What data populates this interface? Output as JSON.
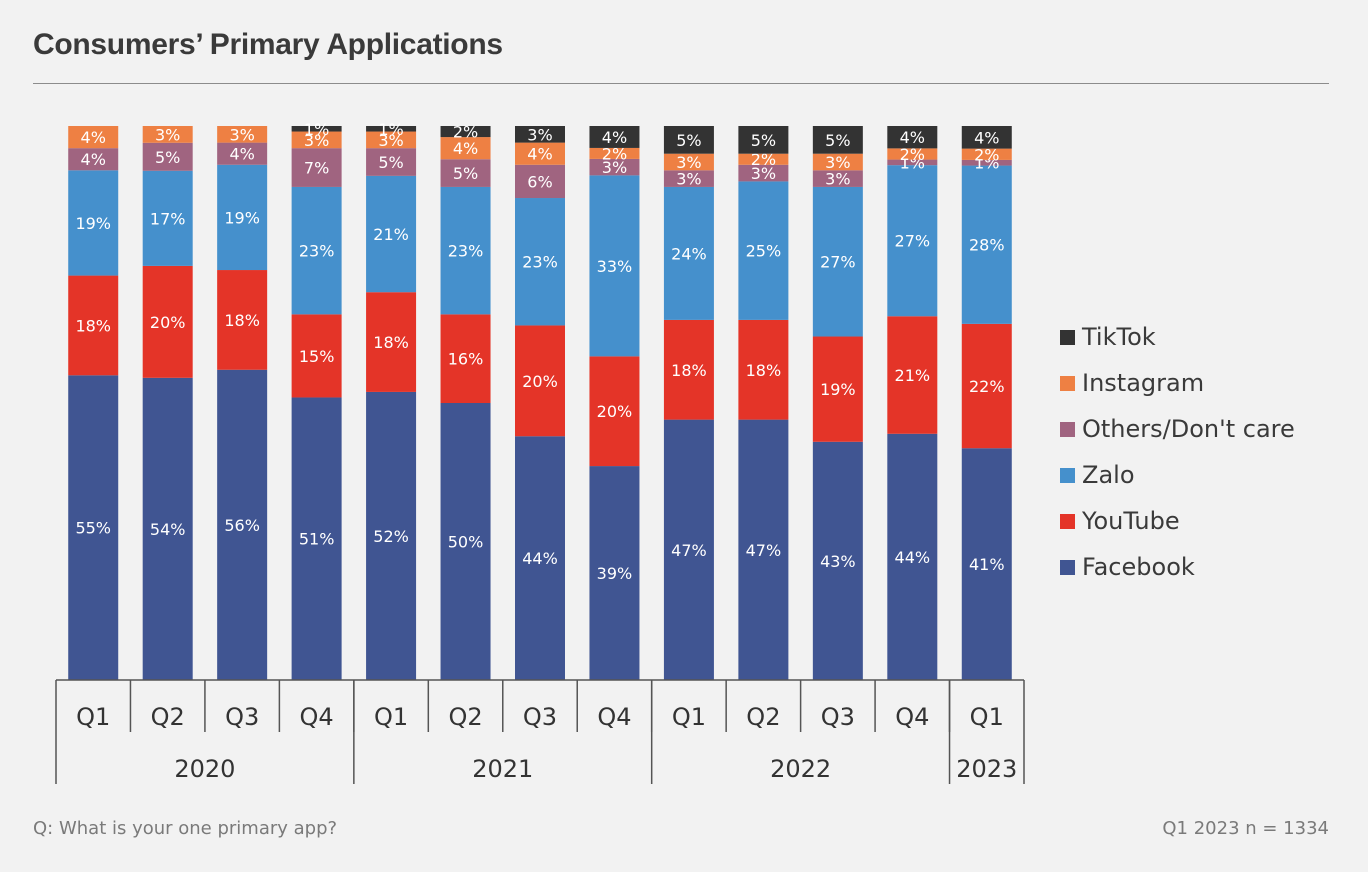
{
  "header": {
    "title": "Consumers’ Primary Applications"
  },
  "footer": {
    "question": "Q: What is your one primary app?",
    "sample": "Q1 2023 n = 1334"
  },
  "colors": {
    "Facebook": "#405592",
    "YouTube": "#e43428",
    "Zalo": "#4590cc",
    "Others/Don't care": "#a06480",
    "Instagram": "#ee8043",
    "TikTok": "#333333"
  },
  "legend": [
    "TikTok",
    "Instagram",
    "Others/Don't care",
    "Zalo",
    "YouTube",
    "Facebook"
  ],
  "chart_data": {
    "type": "bar",
    "stacked": true,
    "title": "Consumers’ Primary Applications",
    "categories": [
      "Q1",
      "Q2",
      "Q3",
      "Q4",
      "Q1",
      "Q2",
      "Q3",
      "Q4",
      "Q1",
      "Q2",
      "Q3",
      "Q4",
      "Q1"
    ],
    "groups": [
      {
        "label": "2020",
        "count": 4
      },
      {
        "label": "2021",
        "count": 4
      },
      {
        "label": "2022",
        "count": 4
      },
      {
        "label": "2023",
        "count": 1
      }
    ],
    "series": [
      {
        "name": "Facebook",
        "values": [
          55,
          54,
          56,
          51,
          52,
          50,
          44,
          39,
          47,
          47,
          43,
          44,
          41
        ]
      },
      {
        "name": "YouTube",
        "values": [
          18,
          20,
          18,
          15,
          18,
          16,
          20,
          20,
          18,
          18,
          19,
          21,
          22
        ]
      },
      {
        "name": "Zalo",
        "values": [
          19,
          17,
          19,
          23,
          21,
          23,
          23,
          33,
          24,
          25,
          27,
          27,
          28
        ]
      },
      {
        "name": "Others/Don't care",
        "values": [
          4,
          5,
          4,
          7,
          5,
          5,
          6,
          3,
          3,
          3,
          3,
          1,
          1
        ]
      },
      {
        "name": "Instagram",
        "values": [
          4,
          3,
          3,
          3,
          3,
          4,
          4,
          2,
          3,
          2,
          3,
          2,
          2
        ]
      },
      {
        "name": "TikTok",
        "values": [
          0,
          0,
          0,
          1,
          1,
          2,
          3,
          4,
          5,
          5,
          5,
          4,
          4
        ]
      }
    ],
    "data_labels": [
      [
        "55%",
        "54%",
        "56%",
        "51%",
        "52%",
        "50%",
        "44%",
        "39%",
        "47%",
        "47%",
        "43%",
        "44%",
        "41%"
      ],
      [
        "18%",
        "20%",
        "18%",
        "15%",
        "18%",
        "16%",
        "20%",
        "20%",
        "18%",
        "18%",
        "19%",
        "21%",
        "22%"
      ],
      [
        "19%",
        "17%",
        "19%",
        "23%",
        "21%",
        "23%",
        "23%",
        "33%",
        "24%",
        "25%",
        "27%",
        "27%",
        "28%"
      ],
      [
        "4%",
        "5%",
        "4%",
        "7%",
        "5%",
        "5%",
        "6%",
        "3%",
        "3%",
        "3%",
        "3%",
        "1%",
        "1%"
      ],
      [
        "4%",
        "3%",
        "3%",
        "3%",
        "3%",
        "4%",
        "4%",
        "2%",
        "3%",
        "2%",
        "3%",
        "2%",
        "2%"
      ],
      [
        "",
        "",
        "",
        "1%",
        "1%",
        "2%",
        "3%",
        "4%",
        "5%",
        "5%",
        "5%",
        "4%",
        "4%"
      ]
    ],
    "ylim": [
      0,
      100
    ],
    "grid": false,
    "legend_position": "right"
  }
}
